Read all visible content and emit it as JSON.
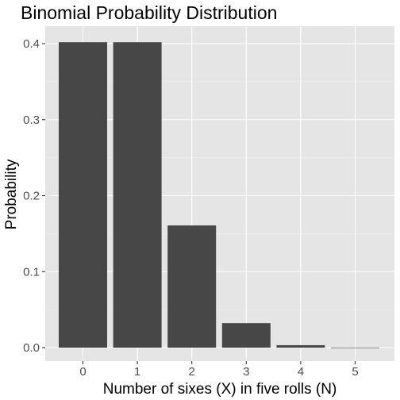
{
  "chart_data": {
    "type": "bar",
    "title": "Binomial Probability Distribution",
    "xlabel": "Number of sixes (X) in five rolls (N)",
    "ylabel": "Probability",
    "categories": [
      "0",
      "1",
      "2",
      "3",
      "4",
      "5"
    ],
    "values": [
      0.4019,
      0.4019,
      0.1608,
      0.0322,
      0.0032,
      0.0001
    ],
    "yticks": [
      "0.0",
      "0.1",
      "0.2",
      "0.3",
      "0.4"
    ],
    "ylim": [
      0,
      0.42
    ],
    "grid": true,
    "legend": "none",
    "colors": {
      "bar": "#474747",
      "panel": "#e5e5e5",
      "grid_major": "#ffffff",
      "grid_minor": "#f2f2f2",
      "tick_text": "#4d4d4d"
    }
  }
}
